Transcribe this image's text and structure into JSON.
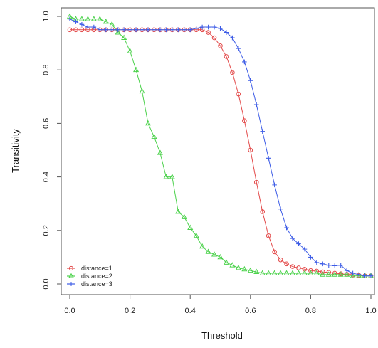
{
  "chart_data": {
    "type": "scatter",
    "xlabel": "Threshold",
    "ylabel": "Transitivity",
    "xlim": [
      0,
      1
    ],
    "ylim": [
      0,
      1
    ],
    "x_ticks": [
      "0.0",
      "0.2",
      "0.4",
      "0.6",
      "0.8",
      "1.0"
    ],
    "y_ticks": [
      "0.0",
      "0.2",
      "0.4",
      "0.6",
      "0.8",
      "1.0"
    ],
    "grid": false,
    "legend_position": "bottom-left",
    "series": [
      {
        "name": "distance=1",
        "color": "#e34a4a",
        "marker": "circle",
        "points": [
          [
            0.0,
            0.95
          ],
          [
            0.02,
            0.95
          ],
          [
            0.04,
            0.95
          ],
          [
            0.06,
            0.95
          ],
          [
            0.08,
            0.95
          ],
          [
            0.1,
            0.95
          ],
          [
            0.12,
            0.95
          ],
          [
            0.14,
            0.95
          ],
          [
            0.16,
            0.95
          ],
          [
            0.18,
            0.95
          ],
          [
            0.2,
            0.95
          ],
          [
            0.22,
            0.95
          ],
          [
            0.24,
            0.95
          ],
          [
            0.26,
            0.95
          ],
          [
            0.28,
            0.95
          ],
          [
            0.3,
            0.95
          ],
          [
            0.32,
            0.95
          ],
          [
            0.34,
            0.95
          ],
          [
            0.36,
            0.95
          ],
          [
            0.38,
            0.95
          ],
          [
            0.4,
            0.95
          ],
          [
            0.42,
            0.95
          ],
          [
            0.44,
            0.95
          ],
          [
            0.46,
            0.94
          ],
          [
            0.48,
            0.92
          ],
          [
            0.5,
            0.89
          ],
          [
            0.52,
            0.85
          ],
          [
            0.54,
            0.79
          ],
          [
            0.56,
            0.71
          ],
          [
            0.58,
            0.61
          ],
          [
            0.6,
            0.5
          ],
          [
            0.62,
            0.38
          ],
          [
            0.64,
            0.27
          ],
          [
            0.66,
            0.18
          ],
          [
            0.68,
            0.12
          ],
          [
            0.7,
            0.09
          ],
          [
            0.72,
            0.075
          ],
          [
            0.74,
            0.065
          ],
          [
            0.76,
            0.06
          ],
          [
            0.78,
            0.055
          ],
          [
            0.8,
            0.05
          ],
          [
            0.82,
            0.048
          ],
          [
            0.84,
            0.045
          ],
          [
            0.86,
            0.043
          ],
          [
            0.88,
            0.04
          ],
          [
            0.9,
            0.038
          ],
          [
            0.92,
            0.036
          ],
          [
            0.94,
            0.034
          ],
          [
            0.96,
            0.032
          ],
          [
            0.98,
            0.03
          ],
          [
            1.0,
            0.03
          ]
        ]
      },
      {
        "name": "distance=2",
        "color": "#4cd24c",
        "marker": "triangle",
        "points": [
          [
            0.0,
            1.0
          ],
          [
            0.02,
            0.99
          ],
          [
            0.04,
            0.99
          ],
          [
            0.06,
            0.99
          ],
          [
            0.08,
            0.99
          ],
          [
            0.1,
            0.99
          ],
          [
            0.12,
            0.98
          ],
          [
            0.14,
            0.97
          ],
          [
            0.16,
            0.94
          ],
          [
            0.18,
            0.92
          ],
          [
            0.2,
            0.87
          ],
          [
            0.22,
            0.8
          ],
          [
            0.24,
            0.72
          ],
          [
            0.26,
            0.6
          ],
          [
            0.28,
            0.55
          ],
          [
            0.3,
            0.49
          ],
          [
            0.32,
            0.4
          ],
          [
            0.34,
            0.4
          ],
          [
            0.36,
            0.27
          ],
          [
            0.38,
            0.25
          ],
          [
            0.4,
            0.21
          ],
          [
            0.42,
            0.18
          ],
          [
            0.44,
            0.14
          ],
          [
            0.46,
            0.12
          ],
          [
            0.48,
            0.11
          ],
          [
            0.5,
            0.1
          ],
          [
            0.52,
            0.08
          ],
          [
            0.54,
            0.07
          ],
          [
            0.56,
            0.06
          ],
          [
            0.58,
            0.055
          ],
          [
            0.6,
            0.05
          ],
          [
            0.62,
            0.045
          ],
          [
            0.64,
            0.04
          ],
          [
            0.66,
            0.04
          ],
          [
            0.68,
            0.04
          ],
          [
            0.7,
            0.04
          ],
          [
            0.72,
            0.04
          ],
          [
            0.74,
            0.04
          ],
          [
            0.76,
            0.04
          ],
          [
            0.78,
            0.04
          ],
          [
            0.8,
            0.04
          ],
          [
            0.82,
            0.04
          ],
          [
            0.84,
            0.035
          ],
          [
            0.86,
            0.035
          ],
          [
            0.88,
            0.035
          ],
          [
            0.9,
            0.035
          ],
          [
            0.92,
            0.035
          ],
          [
            0.94,
            0.03
          ],
          [
            0.96,
            0.03
          ],
          [
            0.98,
            0.03
          ],
          [
            1.0,
            0.03
          ]
        ]
      },
      {
        "name": "distance=3",
        "color": "#3d5ce6",
        "marker": "plus",
        "points": [
          [
            0.0,
            0.99
          ],
          [
            0.02,
            0.98
          ],
          [
            0.04,
            0.97
          ],
          [
            0.06,
            0.96
          ],
          [
            0.08,
            0.96
          ],
          [
            0.1,
            0.95
          ],
          [
            0.12,
            0.95
          ],
          [
            0.14,
            0.95
          ],
          [
            0.16,
            0.95
          ],
          [
            0.18,
            0.95
          ],
          [
            0.2,
            0.95
          ],
          [
            0.22,
            0.95
          ],
          [
            0.24,
            0.95
          ],
          [
            0.26,
            0.95
          ],
          [
            0.28,
            0.95
          ],
          [
            0.3,
            0.95
          ],
          [
            0.32,
            0.95
          ],
          [
            0.34,
            0.95
          ],
          [
            0.36,
            0.95
          ],
          [
            0.38,
            0.95
          ],
          [
            0.4,
            0.95
          ],
          [
            0.42,
            0.955
          ],
          [
            0.44,
            0.96
          ],
          [
            0.46,
            0.96
          ],
          [
            0.48,
            0.96
          ],
          [
            0.5,
            0.955
          ],
          [
            0.52,
            0.94
          ],
          [
            0.54,
            0.92
          ],
          [
            0.56,
            0.88
          ],
          [
            0.58,
            0.83
          ],
          [
            0.6,
            0.76
          ],
          [
            0.62,
            0.67
          ],
          [
            0.64,
            0.57
          ],
          [
            0.66,
            0.47
          ],
          [
            0.68,
            0.37
          ],
          [
            0.7,
            0.28
          ],
          [
            0.72,
            0.21
          ],
          [
            0.74,
            0.17
          ],
          [
            0.76,
            0.15
          ],
          [
            0.78,
            0.13
          ],
          [
            0.8,
            0.1
          ],
          [
            0.82,
            0.08
          ],
          [
            0.84,
            0.075
          ],
          [
            0.86,
            0.07
          ],
          [
            0.88,
            0.068
          ],
          [
            0.9,
            0.07
          ],
          [
            0.92,
            0.05
          ],
          [
            0.94,
            0.04
          ],
          [
            0.96,
            0.035
          ],
          [
            0.98,
            0.03
          ],
          [
            1.0,
            0.03
          ]
        ]
      }
    ]
  }
}
